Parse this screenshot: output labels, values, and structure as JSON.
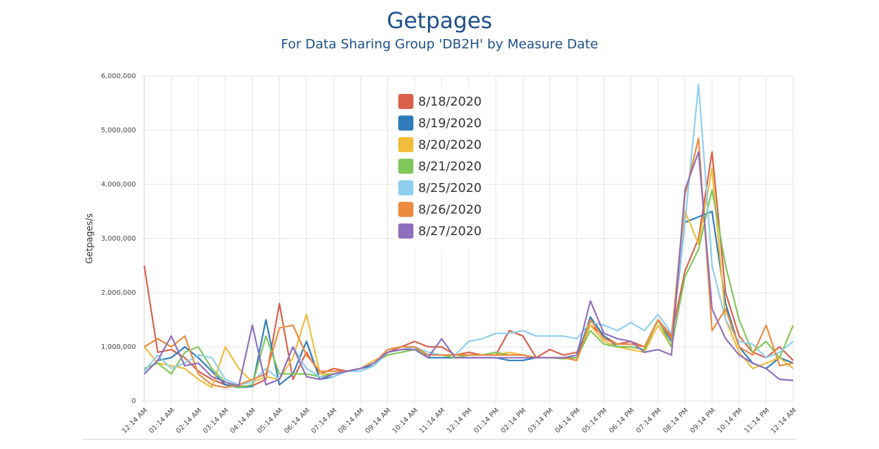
{
  "chart_data": {
    "type": "line",
    "title": "Getpages",
    "subtitle": "For Data Sharing Group 'DB2H' by Measure Date",
    "y_label": "Getpages/s",
    "categories": [
      "12:14 AM",
      null,
      "01:14 AM",
      null,
      "02:14 AM",
      null,
      "03:14 AM",
      null,
      "04:14 AM",
      null,
      "05:14 AM",
      null,
      "06:14 AM",
      null,
      "07:14 AM",
      null,
      "08:14 AM",
      null,
      "09:14 AM",
      null,
      "10:14 AM",
      null,
      "11:14 AM",
      null,
      "12:14 PM",
      null,
      "01:14 PM",
      null,
      "02:14 PM",
      null,
      "03:14 PM",
      null,
      "04:14 PM",
      null,
      "05:14 PM",
      null,
      "06:14 PM",
      null,
      "07:14 PM",
      null,
      "08:14 PM",
      null,
      "09:14 PM",
      null,
      "10:14 PM",
      null,
      "11:14 PM",
      null,
      "12:14 AM"
    ],
    "ylim": [
      0,
      6000000
    ],
    "yticks": [
      0,
      {
        "value": 1000000,
        "label": "1,000,000"
      },
      {
        "value": 2000000,
        "label": "2,000,000"
      },
      {
        "value": 3000000,
        "label": "3,000,000"
      },
      {
        "value": 4000000,
        "label": "4,000,000"
      },
      {
        "value": 5000000,
        "label": "5,000,000"
      },
      {
        "value": 6000000,
        "label": "6,000,000"
      }
    ],
    "grid": true,
    "legend": "top",
    "series": [
      {
        "name": "8/18/2020",
        "color": "#d9604a",
        "values": [
          2500000,
          900000,
          950000,
          800000,
          550000,
          400000,
          300000,
          270000,
          280000,
          400000,
          1800000,
          400000,
          900000,
          500000,
          600000,
          550000,
          600000,
          700000,
          900000,
          1000000,
          1100000,
          1000000,
          1000000,
          850000,
          900000,
          850000,
          850000,
          1300000,
          1200000,
          800000,
          950000,
          850000,
          900000,
          1400000,
          1200000,
          1050000,
          1100000,
          1000000,
          1500000,
          1200000,
          2400000,
          3000000,
          4600000,
          2000000,
          1200000,
          900000,
          800000,
          1000000,
          750000
        ]
      },
      {
        "name": "8/19/2020",
        "color": "#2e7cb8",
        "values": [
          500000,
          750000,
          800000,
          1000000,
          800000,
          550000,
          300000,
          250000,
          270000,
          1500000,
          300000,
          500000,
          1100000,
          400000,
          450000,
          550000,
          600000,
          650000,
          900000,
          950000,
          1000000,
          800000,
          800000,
          800000,
          800000,
          800000,
          800000,
          750000,
          750000,
          800000,
          800000,
          800000,
          800000,
          1550000,
          1200000,
          1000000,
          1000000,
          950000,
          1500000,
          1100000,
          3300000,
          3400000,
          3500000,
          1800000,
          1000000,
          700000,
          600000,
          800000,
          700000
        ]
      },
      {
        "name": "8/20/2020",
        "color": "#f0bd3a",
        "values": [
          1000000,
          700000,
          650000,
          600000,
          400000,
          250000,
          1000000,
          600000,
          350000,
          450000,
          400000,
          800000,
          1600000,
          500000,
          500000,
          550000,
          600000,
          750000,
          850000,
          900000,
          950000,
          850000,
          850000,
          850000,
          850000,
          850000,
          850000,
          900000,
          850000,
          800000,
          800000,
          800000,
          750000,
          1400000,
          1100000,
          1000000,
          950000,
          900000,
          1400000,
          1000000,
          3500000,
          2900000,
          4300000,
          1500000,
          900000,
          600000,
          700000,
          800000,
          600000
        ]
      },
      {
        "name": "8/21/2020",
        "color": "#80c75a",
        "values": [
          600000,
          700000,
          500000,
          900000,
          1000000,
          600000,
          350000,
          250000,
          300000,
          1200000,
          500000,
          500000,
          500000,
          450000,
          500000,
          550000,
          600000,
          700000,
          850000,
          900000,
          950000,
          850000,
          850000,
          800000,
          850000,
          850000,
          900000,
          850000,
          850000,
          800000,
          800000,
          780000,
          800000,
          1300000,
          1050000,
          1000000,
          1000000,
          950000,
          1500000,
          1000000,
          2300000,
          2800000,
          3900000,
          2500000,
          1500000,
          900000,
          1100000,
          800000,
          1400000
        ]
      },
      {
        "name": "8/25/2020",
        "color": "#8ecff0",
        "values": [
          550000,
          850000,
          600000,
          700000,
          850000,
          800000,
          400000,
          300000,
          350000,
          600000,
          400000,
          1000000,
          600000,
          450000,
          450000,
          550000,
          550000,
          650000,
          900000,
          950000,
          1000000,
          900000,
          850000,
          850000,
          1100000,
          1150000,
          1250000,
          1250000,
          1300000,
          1200000,
          1200000,
          1200000,
          1150000,
          1450000,
          1400000,
          1300000,
          1450000,
          1300000,
          1600000,
          1250000,
          3300000,
          5850000,
          2500000,
          1500000,
          1100000,
          1050000,
          800000,
          900000,
          1100000
        ]
      },
      {
        "name": "8/26/2020",
        "color": "#ec8a3e",
        "values": [
          1000000,
          1150000,
          1000000,
          1200000,
          500000,
          300000,
          250000,
          300000,
          400000,
          500000,
          1350000,
          1400000,
          850000,
          550000,
          550000,
          550000,
          600000,
          700000,
          950000,
          1000000,
          1000000,
          850000,
          850000,
          850000,
          850000,
          850000,
          850000,
          850000,
          850000,
          800000,
          800000,
          800000,
          750000,
          1500000,
          1150000,
          1050000,
          1050000,
          1000000,
          1500000,
          1150000,
          3800000,
          4850000,
          1300000,
          1700000,
          1000000,
          850000,
          1400000,
          650000,
          700000
        ]
      },
      {
        "name": "8/27/2020",
        "color": "#8e6fbd",
        "values": [
          500000,
          750000,
          1200000,
          650000,
          700000,
          450000,
          350000,
          280000,
          1400000,
          300000,
          400000,
          1000000,
          450000,
          400000,
          500000,
          550000,
          600000,
          700000,
          900000,
          950000,
          950000,
          800000,
          1150000,
          800000,
          800000,
          800000,
          800000,
          800000,
          800000,
          800000,
          800000,
          800000,
          850000,
          1850000,
          1250000,
          1150000,
          1100000,
          900000,
          950000,
          850000,
          3900000,
          4600000,
          1700000,
          1150000,
          850000,
          700000,
          600000,
          400000,
          380000
        ]
      }
    ]
  }
}
